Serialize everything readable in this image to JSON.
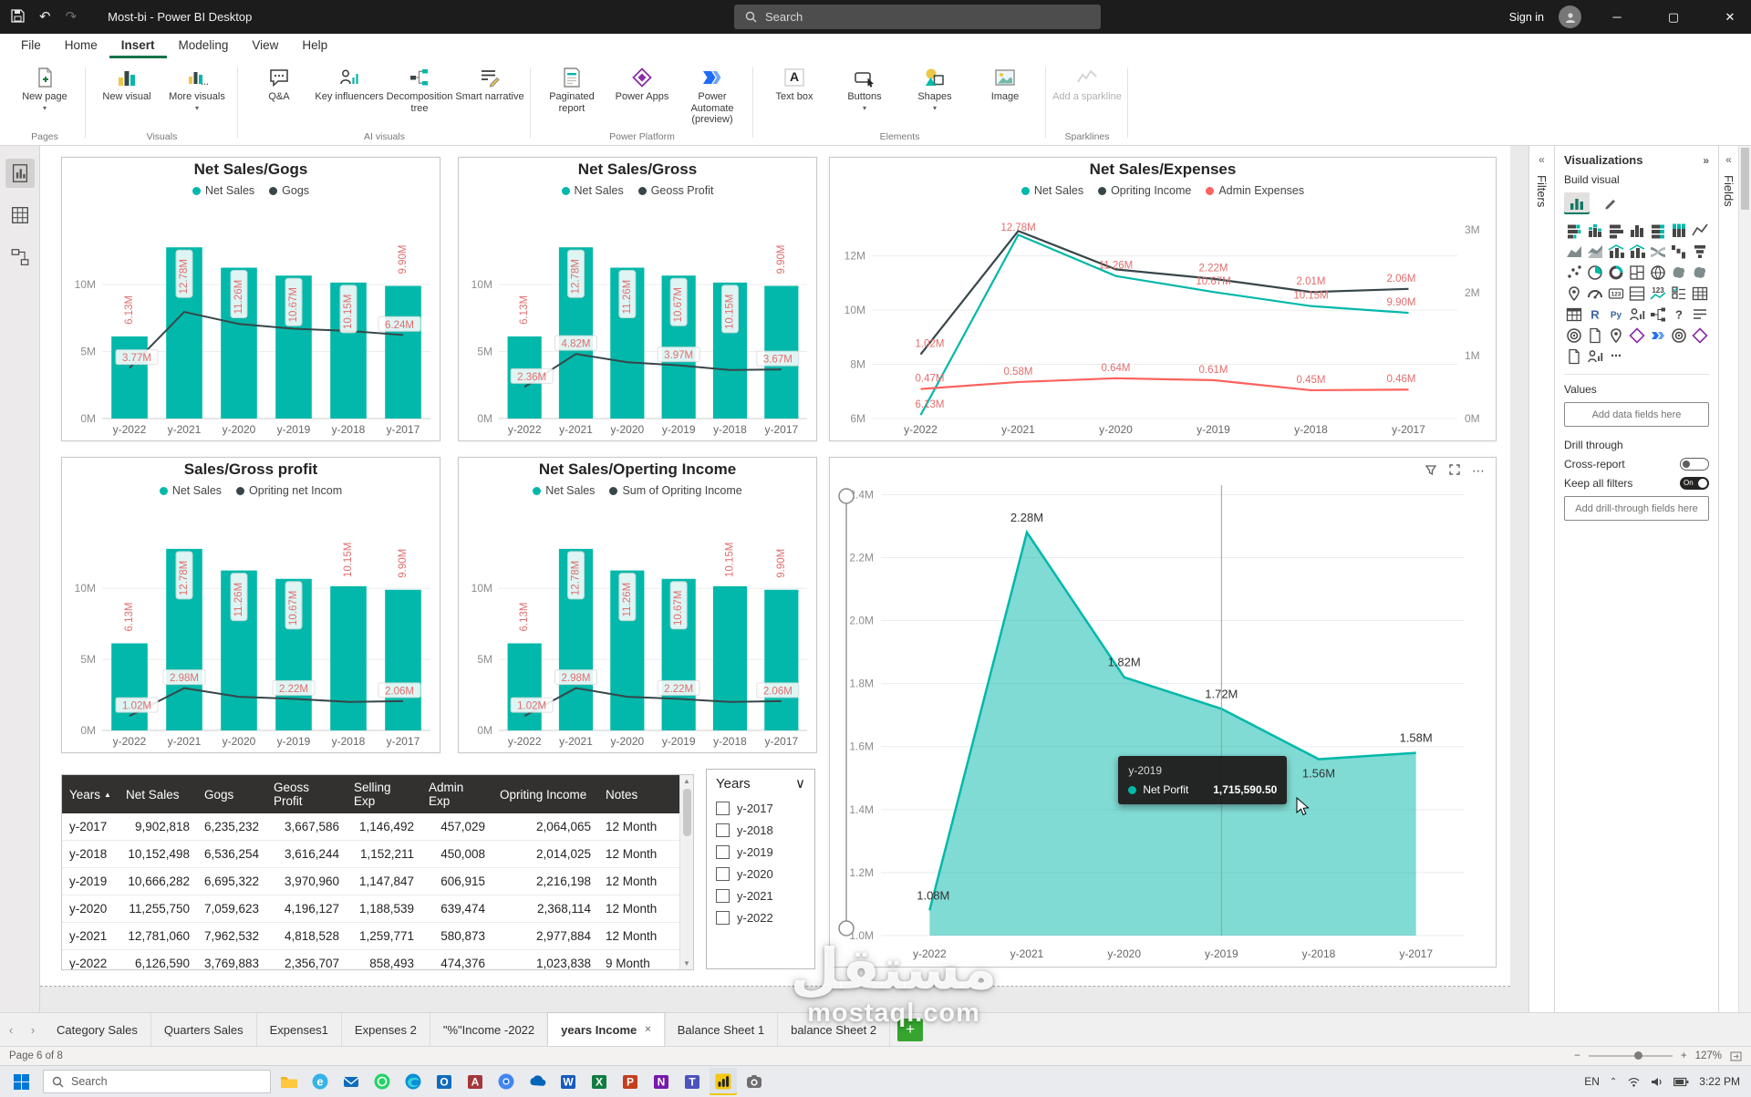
{
  "colors": {
    "teal": "#01B8AA",
    "dark": "#374649",
    "red": "#FD625E",
    "data_label": "#E26D6D",
    "taskbar_accent": "#F2C811"
  },
  "titlebar": {
    "title": "Most-bi - Power BI Desktop",
    "search_placeholder": "Search",
    "sign_in": "Sign in"
  },
  "menubar": {
    "items": [
      "File",
      "Home",
      "Insert",
      "Modeling",
      "View",
      "Help"
    ],
    "active": "Insert"
  },
  "ribbon": {
    "groups": [
      {
        "label": "Pages",
        "buttons": [
          {
            "label": "New page",
            "icon": "new-page-icon",
            "dropdown": true
          }
        ]
      },
      {
        "label": "Visuals",
        "buttons": [
          {
            "label": "New visual",
            "icon": "new-visual-icon"
          },
          {
            "label": "More visuals",
            "icon": "more-visuals-icon",
            "dropdown": true
          }
        ]
      },
      {
        "label": "AI visuals",
        "buttons": [
          {
            "label": "Q&A",
            "icon": "qa-icon"
          },
          {
            "label": "Key influencers",
            "icon": "key-influencers-icon"
          },
          {
            "label": "Decomposition tree",
            "icon": "decomposition-tree-icon"
          },
          {
            "label": "Smart narrative",
            "icon": "smart-narrative-icon"
          }
        ]
      },
      {
        "label": "Power Platform",
        "buttons": [
          {
            "label": "Paginated report",
            "icon": "paginated-report-icon"
          },
          {
            "label": "Power Apps",
            "icon": "power-apps-icon"
          },
          {
            "label": "Power Automate (preview)",
            "icon": "power-automate-icon"
          }
        ]
      },
      {
        "label": "Elements",
        "buttons": [
          {
            "label": "Text box",
            "icon": "text-box-icon"
          },
          {
            "label": "Buttons",
            "icon": "buttons-icon",
            "dropdown": true
          },
          {
            "label": "Shapes",
            "icon": "shapes-icon",
            "dropdown": true
          },
          {
            "label": "Image",
            "icon": "image-icon"
          }
        ]
      },
      {
        "label": "Sparklines",
        "buttons": [
          {
            "label": "Add a sparkline",
            "icon": "sparkline-icon",
            "disabled": true
          }
        ]
      }
    ]
  },
  "chart_data": [
    {
      "id": "net_sales_gogs",
      "type": "bar-line",
      "title": "Net Sales/Gogs",
      "legend": [
        {
          "label": "Net Sales",
          "color": "#01B8AA"
        },
        {
          "label": "Gogs",
          "color": "#374649"
        }
      ],
      "categories": [
        "y-2022",
        "y-2021",
        "y-2020",
        "y-2019",
        "y-2018",
        "y-2017"
      ],
      "bars": {
        "name": "Net Sales",
        "color": "#01B8AA",
        "values": [
          6.13,
          12.78,
          11.26,
          10.67,
          10.15,
          9.9
        ],
        "labels": [
          "6.13M",
          "12.78M",
          "11.26M",
          "10.67M",
          "10.15M",
          "9.90M"
        ]
      },
      "line": {
        "name": "Gogs",
        "color": "#374649",
        "values": [
          3.77,
          7.96,
          7.06,
          6.7,
          6.54,
          6.24
        ],
        "labels": {
          "0": "3.77M",
          "5": "6.24M"
        }
      },
      "ylim": [
        0,
        14.7
      ],
      "yticks": [
        {
          "v": 0,
          "t": "0M"
        },
        {
          "v": 5,
          "t": "5M"
        },
        {
          "v": 10,
          "t": "10M"
        }
      ]
    },
    {
      "id": "net_sales_gross",
      "type": "bar-line",
      "title": "Net Sales/Gross",
      "legend": [
        {
          "label": "Net Sales",
          "color": "#01B8AA"
        },
        {
          "label": "Geoss Profit",
          "color": "#374649"
        }
      ],
      "categories": [
        "y-2022",
        "y-2021",
        "y-2020",
        "y-2019",
        "y-2018",
        "y-2017"
      ],
      "bars": {
        "name": "Net Sales",
        "color": "#01B8AA",
        "values": [
          6.13,
          12.78,
          11.26,
          10.67,
          10.15,
          9.9
        ],
        "labels": [
          "6.13M",
          "12.78M",
          "11.26M",
          "10.67M",
          "10.15M",
          "9.90M"
        ]
      },
      "line": {
        "name": "Geoss Profit",
        "color": "#374649",
        "values": [
          2.36,
          4.82,
          4.2,
          3.97,
          3.62,
          3.67
        ],
        "labels": {
          "0": "2.36M",
          "1": "4.82M",
          "3": "3.97M",
          "5": "3.67M"
        }
      },
      "ylim": [
        0,
        14.7
      ],
      "yticks": [
        {
          "v": 0,
          "t": "0M"
        },
        {
          "v": 5,
          "t": "5M"
        },
        {
          "v": 10,
          "t": "10M"
        }
      ]
    },
    {
      "id": "net_sales_expenses",
      "type": "multi-line",
      "title": "Net Sales/Expenses",
      "legend": [
        {
          "label": "Net Sales",
          "color": "#01B8AA"
        },
        {
          "label": "Opriting Income",
          "color": "#374649"
        },
        {
          "label": "Admin Expenses",
          "color": "#FD625E"
        }
      ],
      "categories": [
        "y-2022",
        "y-2021",
        "y-2020",
        "y-2019",
        "y-2018",
        "y-2017"
      ],
      "series": [
        {
          "name": "Net Sales",
          "color": "#01B8AA",
          "axis": "left",
          "values": [
            6.13,
            12.78,
            11.26,
            10.67,
            10.15,
            9.9
          ],
          "labels": [
            "6.13M",
            "12.78M",
            "11.26M",
            "10.67M",
            "10.15M",
            "9.90M"
          ]
        },
        {
          "name": "Opriting Income",
          "color": "#374649",
          "axis": "right",
          "values": [
            1.02,
            2.98,
            2.37,
            2.22,
            2.01,
            2.06
          ],
          "labels": [
            "1.02M",
            "",
            "",
            "2.22M",
            "2.01M",
            "2.06M"
          ]
        },
        {
          "name": "Admin Expenses",
          "color": "#FD625E",
          "axis": "right",
          "values": [
            0.47,
            0.58,
            0.64,
            0.61,
            0.45,
            0.46
          ],
          "labels": [
            "0.47M",
            "0.58M",
            "0.64M",
            "0.61M",
            "0.45M",
            "0.46M"
          ]
        }
      ],
      "left_axis": {
        "lim": [
          6,
          13.2
        ],
        "ticks": [
          {
            "v": 6,
            "t": "6M"
          },
          {
            "v": 8,
            "t": "8M"
          },
          {
            "v": 10,
            "t": "10M"
          },
          {
            "v": 12,
            "t": "12M"
          }
        ]
      },
      "right_axis": {
        "lim": [
          0,
          3.1
        ],
        "ticks": [
          {
            "v": 0,
            "t": "0M"
          },
          {
            "v": 1,
            "t": "1M"
          },
          {
            "v": 2,
            "t": "2M"
          },
          {
            "v": 3,
            "t": "3M"
          }
        ]
      }
    },
    {
      "id": "sales_gross_profit",
      "type": "bar-line",
      "title": "Sales/Gross profit",
      "legend": [
        {
          "label": "Net Sales",
          "color": "#01B8AA"
        },
        {
          "label": "Opriting net Incom",
          "color": "#374649"
        }
      ],
      "categories": [
        "y-2022",
        "y-2021",
        "y-2020",
        "y-2019",
        "y-2018",
        "y-2017"
      ],
      "bars": {
        "name": "Net Sales",
        "color": "#01B8AA",
        "values": [
          6.13,
          12.78,
          11.26,
          10.67,
          10.15,
          9.9
        ],
        "labels": [
          "6.13M",
          "12.78M",
          "11.26M",
          "10.67M",
          "10.15M",
          "9.90M"
        ]
      },
      "line": {
        "name": "Opriting net Incom",
        "color": "#374649",
        "values": [
          1.02,
          2.98,
          2.37,
          2.22,
          2.01,
          2.06
        ],
        "labels": {
          "0": "1.02M",
          "1": "2.98M",
          "3": "2.22M",
          "5": "2.06M"
        }
      },
      "ylim": [
        0,
        14.7
      ],
      "yticks": [
        {
          "v": 0,
          "t": "0M"
        },
        {
          "v": 5,
          "t": "5M"
        },
        {
          "v": 10,
          "t": "10M"
        }
      ]
    },
    {
      "id": "net_sales_operting_income",
      "type": "bar-line",
      "title": "Net Sales/Operting Income",
      "legend": [
        {
          "label": "Net Sales",
          "color": "#01B8AA"
        },
        {
          "label": "Sum of Opriting Income",
          "color": "#374649"
        }
      ],
      "categories": [
        "y-2022",
        "y-2021",
        "y-2020",
        "y-2019",
        "y-2018",
        "y-2017"
      ],
      "bars": {
        "name": "Net Sales",
        "color": "#01B8AA",
        "values": [
          6.13,
          12.78,
          11.26,
          10.67,
          10.15,
          9.9
        ],
        "labels": [
          "6.13M",
          "12.78M",
          "11.26M",
          "10.67M",
          "10.15M",
          "9.90M"
        ]
      },
      "line": {
        "name": "Sum of Opriting Income",
        "color": "#374649",
        "values": [
          1.02,
          2.98,
          2.37,
          2.22,
          2.01,
          2.06
        ],
        "labels": {
          "0": "1.02M",
          "1": "2.98M",
          "3": "2.22M",
          "5": "2.06M"
        }
      },
      "ylim": [
        0,
        14.7
      ],
      "yticks": [
        {
          "v": 0,
          "t": "0M"
        },
        {
          "v": 5,
          "t": "5M"
        },
        {
          "v": 10,
          "t": "10M"
        }
      ]
    },
    {
      "id": "net_profit_area",
      "type": "area",
      "title": "",
      "series_name": "Net Porfit",
      "color": "#01B8AA",
      "categories": [
        "y-2022",
        "y-2021",
        "y-2020",
        "y-2019",
        "y-2018",
        "y-2017"
      ],
      "values": [
        1.08,
        2.28,
        1.82,
        1.72,
        1.56,
        1.58
      ],
      "labels": [
        "1.08M",
        "2.28M",
        "1.82M",
        "1.72M",
        "1.56M",
        "1.58M"
      ],
      "ylim": [
        1.0,
        2.43
      ],
      "yticks": [
        {
          "v": 1.0,
          "t": "1.0M"
        },
        {
          "v": 1.2,
          "t": "1.2M"
        },
        {
          "v": 1.4,
          "t": "1.4M"
        },
        {
          "v": 1.6,
          "t": "1.6M"
        },
        {
          "v": 1.8,
          "t": "1.8M"
        },
        {
          "v": 2.0,
          "t": "2.0M"
        },
        {
          "v": 2.2,
          "t": "2.2M"
        },
        {
          "v": 2.4,
          "t": "2.4M"
        }
      ],
      "crosshair_index": 3,
      "tooltip": {
        "category": "y-2019",
        "series": "Net Porfit",
        "value": "1,715,590.50"
      }
    }
  ],
  "table": {
    "sorted_by": "Years",
    "columns": [
      "Years",
      "Net Sales",
      "Gogs",
      "Geoss Profit",
      "Selling Exp",
      "Admin Exp",
      "Opriting Income",
      "Notes"
    ],
    "rows": [
      [
        "y-2017",
        "9,902,818",
        "6,235,232",
        "3,667,586",
        "1,146,492",
        "457,029",
        "2,064,065",
        "12 Month"
      ],
      [
        "y-2018",
        "10,152,498",
        "6,536,254",
        "3,616,244",
        "1,152,211",
        "450,008",
        "2,014,025",
        "12 Month"
      ],
      [
        "y-2019",
        "10,666,282",
        "6,695,322",
        "3,970,960",
        "1,147,847",
        "606,915",
        "2,216,198",
        "12 Month"
      ],
      [
        "y-2020",
        "11,255,750",
        "7,059,623",
        "4,196,127",
        "1,188,539",
        "639,474",
        "2,368,114",
        "12 Month"
      ],
      [
        "y-2021",
        "12,781,060",
        "7,962,532",
        "4,818,528",
        "1,259,771",
        "580,873",
        "2,977,884",
        "12 Month"
      ],
      [
        "y-2022",
        "6,126,590",
        "3,769,883",
        "2,356,707",
        "858,493",
        "474,376",
        "1,023,838",
        "9 Month"
      ]
    ]
  },
  "slicer": {
    "title": "Years",
    "options": [
      "y-2017",
      "y-2018",
      "y-2019",
      "y-2020",
      "y-2021",
      "y-2022"
    ]
  },
  "filters_pane": {
    "label": "Filters"
  },
  "fields_pane": {
    "label": "Fields"
  },
  "visualizations": {
    "title": "Visualizations",
    "tab": "Build visual",
    "values_label": "Values",
    "values_placeholder": "Add data fields here",
    "drill_label": "Drill through",
    "cross_report_label": "Cross-report",
    "cross_report_state": "Off",
    "keep_filters_label": "Keep all filters",
    "keep_filters_state": "On",
    "drill_placeholder": "Add drill-through fields here",
    "icons": [
      "stacked-bar-chart",
      "stacked-column-chart",
      "clustered-bar-chart",
      "clustered-column-chart",
      "100-stacked-bar-chart",
      "100-stacked-column-chart",
      "line-chart",
      "area-chart",
      "stacked-area-chart",
      "line-and-stacked-column-chart",
      "line-and-clustered-column-chart",
      "ribbon-chart",
      "waterfall-chart",
      "funnel-chart",
      "scatter-chart",
      "pie-chart",
      "donut-chart",
      "treemap",
      "map",
      "filled-map",
      "shape-map",
      "azure-map",
      "gauge",
      "card",
      "multi-row-card",
      "kpi",
      "slicer",
      "table",
      "matrix",
      "r-script-visual",
      "python-visual",
      "key-influencers",
      "decomposition-tree",
      "qa-visual",
      "smart-narrative",
      "metrics",
      "paginated-report",
      "arcgis-map",
      "power-apps-visual",
      "power-automate-visual",
      "scorecard",
      "custom-visual",
      "import-visual",
      "personalize-visual",
      "more-options"
    ]
  },
  "pages_bar": {
    "tabs": [
      "Category Sales",
      "Quarters Sales",
      "Expenses1",
      "Expenses 2",
      "\"%\"Income -2022",
      "years Income",
      "Balance Sheet 1",
      "balance Sheet 2"
    ],
    "active": "years Income"
  },
  "statusbar": {
    "page_info": "Page 6 of 8",
    "zoom": "127%"
  },
  "taskbar": {
    "search_placeholder": "Search",
    "icons": [
      "file-explorer",
      "internet-explorer",
      "mail",
      "whatsapp",
      "edge",
      "outlook",
      "access",
      "chrome",
      "onedrive",
      "word",
      "excel",
      "powerpoint",
      "onenote",
      "teams",
      "power-bi",
      "camera"
    ],
    "active_icon": "power-bi",
    "tray": {
      "lang": "EN",
      "time": "3:22 PM"
    }
  },
  "watermark": {
    "line1": "مستقل",
    "line2": "mostaql.com"
  }
}
